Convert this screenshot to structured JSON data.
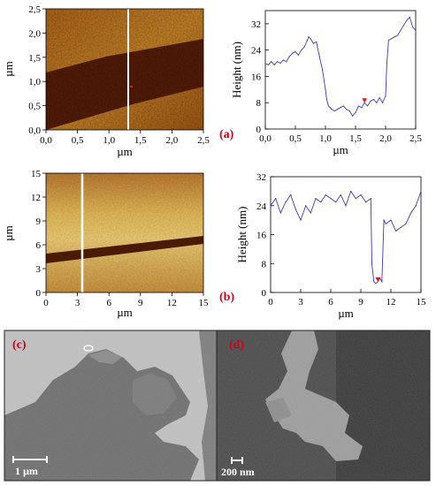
{
  "panels": {
    "a": {
      "label": "(a)",
      "afm_image": {
        "x_ticks": [
          "0,0",
          "0,5",
          "1,0",
          "1,5",
          "2,0",
          "2,5"
        ],
        "y_ticks": [
          "0,0",
          "0,5",
          "1,0",
          "1,5",
          "2,0",
          "2,5"
        ],
        "xlabel": "µm",
        "ylabel": "µm"
      },
      "profile": {
        "x_ticks": [
          "0,0",
          "0,5",
          "1,0",
          "1,5",
          "2,0",
          "2,5"
        ],
        "y_ticks": [
          "0",
          "8",
          "16",
          "24",
          "32"
        ],
        "xlabel": "µm",
        "ylabel": "Height (nm)"
      }
    },
    "b": {
      "label": "(b)",
      "afm_image": {
        "x_ticks": [
          "0",
          "3",
          "6",
          "9",
          "12",
          "15"
        ],
        "y_ticks": [
          "0",
          "3",
          "6",
          "9",
          "12",
          "15"
        ],
        "xlabel": "µm",
        "ylabel": "µm"
      },
      "profile": {
        "x_ticks": [
          "0",
          "3",
          "6",
          "9",
          "12",
          "15"
        ],
        "y_ticks": [
          "0",
          "8",
          "16",
          "24",
          "32"
        ],
        "xlabel": "µm",
        "ylabel": "Height (nm)"
      }
    },
    "c": {
      "label": "(c)",
      "scalebar": "1 µm"
    },
    "d": {
      "label": "(d)",
      "scalebar": "200 nm"
    }
  },
  "colors": {
    "profile_line": "#3b3bbf",
    "panel_label": "#d0021b",
    "cursor": "#ffffff",
    "marker": "#e41a1c"
  },
  "chart_data": [
    {
      "type": "line",
      "panel": "a",
      "xlabel": "µm",
      "ylabel": "Height (nm)",
      "xlim": [
        0,
        2.5
      ],
      "ylim": [
        0,
        36
      ],
      "series": [
        {
          "x": [
            0.0,
            0.05,
            0.1,
            0.15,
            0.2,
            0.25,
            0.3,
            0.35,
            0.4,
            0.45,
            0.5,
            0.55,
            0.6,
            0.65,
            0.7,
            0.72,
            0.75,
            0.8,
            0.85,
            0.9,
            0.95,
            1.0,
            1.02,
            1.05,
            1.08,
            1.1,
            1.15,
            1.2,
            1.25,
            1.3,
            1.35,
            1.4,
            1.45,
            1.5,
            1.55,
            1.6,
            1.65,
            1.7,
            1.75,
            1.8,
            1.85,
            1.9,
            1.95,
            2.0,
            2.02,
            2.05,
            2.1,
            2.15,
            2.2,
            2.25,
            2.3,
            2.35,
            2.4,
            2.45,
            2.5
          ],
          "y": [
            20,
            19.5,
            20.5,
            19.5,
            20.5,
            20,
            21,
            20.5,
            22,
            23,
            23.5,
            22.5,
            24,
            25,
            27,
            28,
            27.5,
            26,
            26.5,
            22,
            18,
            12,
            9,
            7,
            6.5,
            6,
            5.5,
            6,
            6.5,
            7,
            6,
            5.5,
            4,
            5,
            7,
            6.5,
            8,
            7,
            8.5,
            9,
            8,
            9.5,
            8,
            10,
            20,
            27,
            27.5,
            28,
            28.5,
            30,
            31.5,
            33,
            34,
            31,
            30
          ]
        }
      ]
    },
    {
      "type": "line",
      "panel": "b",
      "xlabel": "µm",
      "ylabel": "Height (nm)",
      "xlim": [
        0,
        15
      ],
      "ylim": [
        0,
        32
      ],
      "series": [
        {
          "x": [
            0,
            0.5,
            1,
            1.5,
            2,
            2.5,
            3,
            3.5,
            4,
            4.5,
            5,
            5.5,
            6,
            6.5,
            7,
            7.5,
            8,
            8.5,
            9,
            9.5,
            10,
            10.1,
            10.3,
            10.5,
            10.7,
            10.9,
            11.1,
            11.3,
            11.5,
            12,
            12.5,
            13,
            13.5,
            14,
            14.5,
            15
          ],
          "y": [
            24,
            26,
            22,
            25,
            27,
            23,
            20,
            24,
            22,
            26,
            25,
            27,
            26,
            25,
            27,
            24,
            28,
            26,
            27,
            25,
            26,
            8,
            3,
            2.5,
            3,
            4,
            3,
            20,
            19,
            20,
            17,
            18,
            19,
            22,
            24,
            28
          ]
        }
      ]
    }
  ]
}
